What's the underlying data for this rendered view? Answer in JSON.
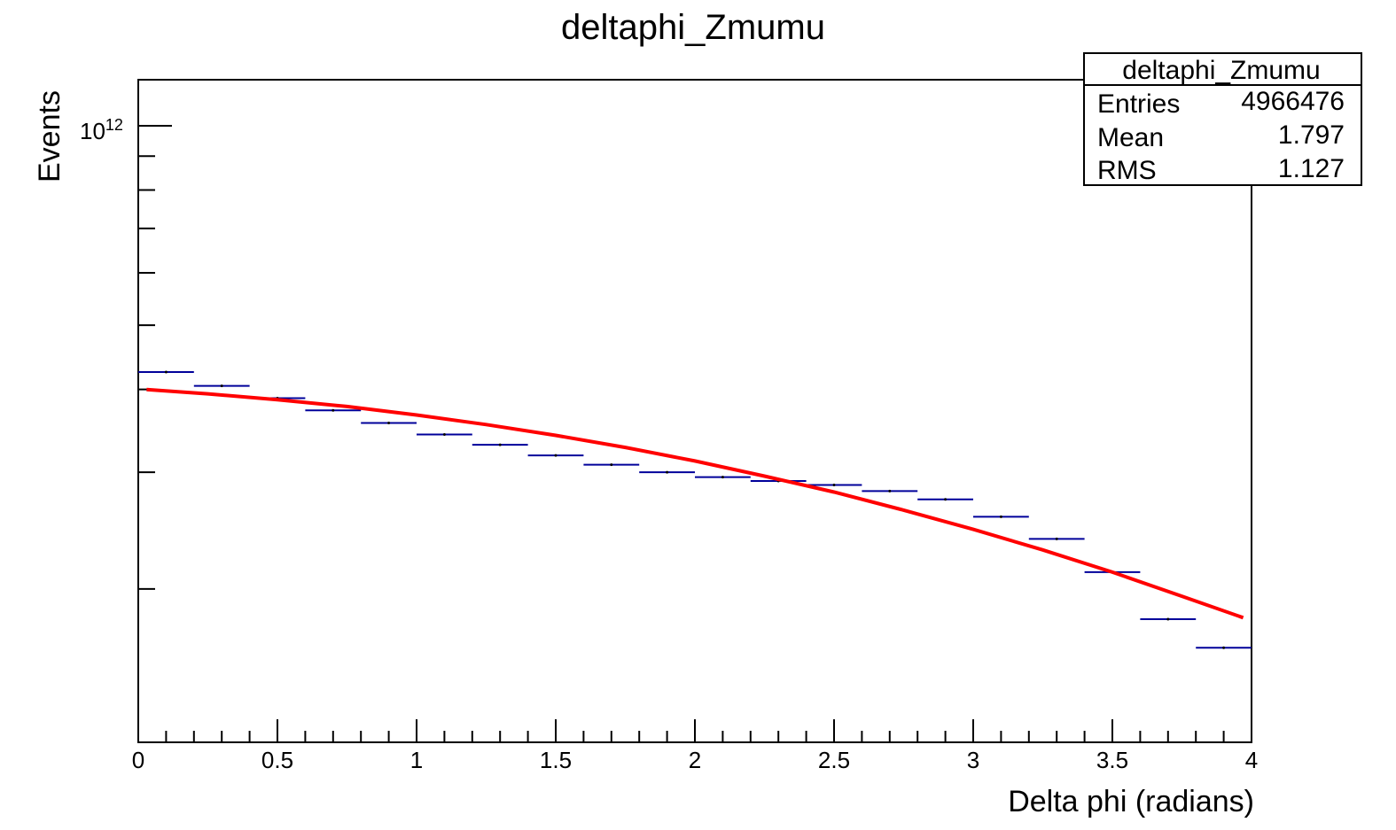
{
  "chart_data": {
    "type": "histogram",
    "title": "deltaphi_Zmumu",
    "xlabel": "Delta phi (radians)",
    "ylabel": "Events",
    "xlim": [
      0,
      4
    ],
    "ylog": true,
    "y_decade_label": {
      "base": "10",
      "exponent": "12"
    },
    "x_ticks": [
      {
        "value": 0,
        "label": "0"
      },
      {
        "value": 0.5,
        "label": "0.5"
      },
      {
        "value": 1,
        "label": "1"
      },
      {
        "value": 1.5,
        "label": "1.5"
      },
      {
        "value": 2,
        "label": "2"
      },
      {
        "value": 2.5,
        "label": "2.5"
      },
      {
        "value": 3,
        "label": "3"
      },
      {
        "value": 3.5,
        "label": "3.5"
      },
      {
        "value": 4,
        "label": "4"
      }
    ],
    "series": [
      {
        "kind": "histogram",
        "color": "#00009a",
        "bin_width": 0.2,
        "bin_edges": [
          0,
          0.2,
          0.4,
          0.6,
          0.8,
          1.0,
          1.2,
          1.4,
          1.6,
          1.8,
          2.0,
          2.2,
          2.4,
          2.6,
          2.8,
          3.0,
          3.2,
          3.4,
          3.6,
          3.8,
          4.0
        ],
        "values": [
          425000000000.0,
          405000000000.0,
          388000000000.0,
          372000000000.0,
          356000000000.0,
          342000000000.0,
          330000000000.0,
          318000000000.0,
          308000000000.0,
          300000000000.0,
          295000000000.0,
          291000000000.0,
          287000000000.0,
          281000000000.0,
          273000000000.0,
          257000000000.0,
          238000000000.0,
          212000000000.0,
          180000000000.0,
          163000000000.0
        ]
      },
      {
        "kind": "fit",
        "color": "#ff0000",
        "x": [
          0.03,
          0.25,
          0.5,
          0.75,
          1.0,
          1.25,
          1.5,
          1.75,
          2.0,
          2.25,
          2.5,
          2.75,
          3.0,
          3.25,
          3.5,
          3.75,
          3.97
        ],
        "values": [
          400000000000.0,
          394000000000.0,
          386000000000.0,
          377000000000.0,
          366000000000.0,
          354000000000.0,
          341000000000.0,
          327000000000.0,
          312000000000.0,
          296000000000.0,
          280000000000.0,
          263000000000.0,
          246000000000.0,
          229000000000.0,
          212000000000.0,
          195000000000.0,
          181000000000.0
        ]
      }
    ]
  },
  "stats_box": {
    "title": "deltaphi_Zmumu",
    "rows": [
      {
        "label": "Entries",
        "value": "4966476"
      },
      {
        "label": "Mean",
        "value": "1.797"
      },
      {
        "label": "RMS",
        "value": "1.127"
      }
    ]
  }
}
